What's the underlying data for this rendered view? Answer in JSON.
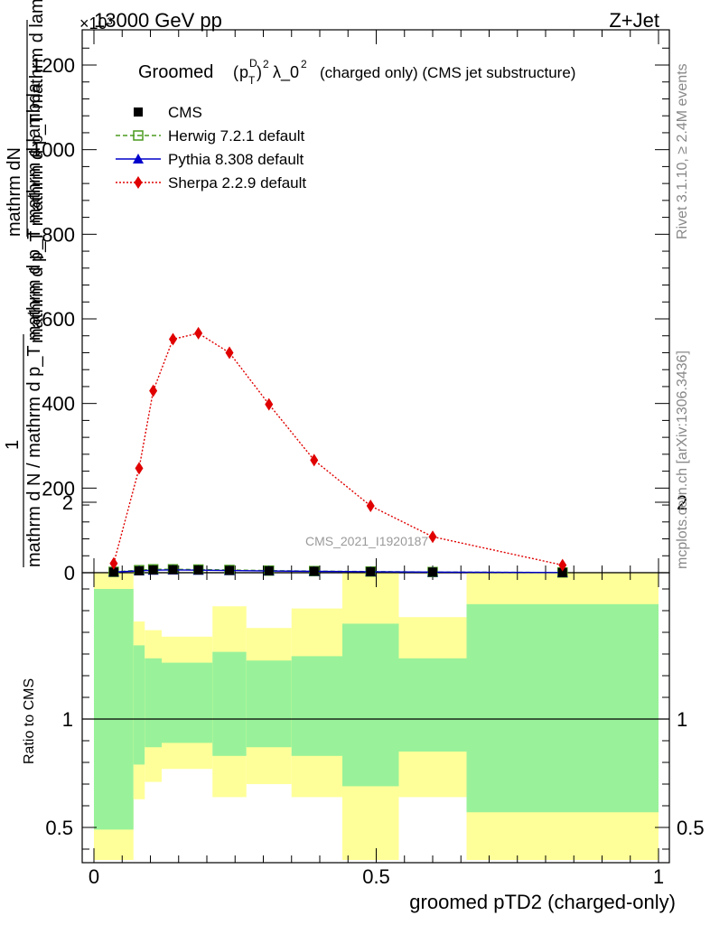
{
  "header": {
    "left": "13000 GeV pp",
    "right": "Z+Jet",
    "exponent": "×10³"
  },
  "side_labels": {
    "rivet": "Rivet 3.1.10, ≥ 2.4M events",
    "mcplots": "mcplots.cern.ch [arXiv:1306.3436]"
  },
  "main_title": "Groomed (p_T^D)² λ_0²  (charged only) (CMS jet substructure)",
  "main_title_parts": {
    "prefix": "Groomed",
    "pt": "p",
    "pt_sub": "T",
    "pt_sup": "D",
    "sq": "2",
    "lambda": "λ_0",
    "rest": "(charged only) (CMS jet substructure)"
  },
  "watermark": "CMS_2021_I1920187",
  "ylabel_parts": {
    "numerator_top": "mathrm dN",
    "denominator_top": "mathrm d p_T mathrm d p_T mathrm d lambda",
    "denominator_sub": "T",
    "one": "1",
    "lower_denominator": "mathrm d N / mathrm d p_T mathrm d p_T mathrm d lambda"
  },
  "xlabel": "groomed pTD2 (charged-only)",
  "ratio_ylabel": "Ratio to CMS",
  "legend": [
    {
      "name": "CMS",
      "color": "#000000",
      "marker": "square-filled",
      "line": "none"
    },
    {
      "name": "Herwig 7.2.1 default",
      "color": "#4a9a1e",
      "marker": "square-open",
      "line": "dashed"
    },
    {
      "name": "Pythia 8.308 default",
      "color": "#0000cc",
      "marker": "triangle",
      "line": "solid"
    },
    {
      "name": "Sherpa 2.2.9 default",
      "color": "#e00000",
      "marker": "diamond",
      "line": "dotted"
    }
  ],
  "chart_data": {
    "type": "line",
    "x_range": [
      0,
      1
    ],
    "main_y_range": [
      0,
      1280
    ],
    "main_y_ticks": [
      0,
      200,
      400,
      600,
      800,
      1000,
      1200
    ],
    "main_y_tick_labels": [
      "0",
      "200",
      "400",
      "600",
      "800",
      "1000",
      "1200"
    ],
    "ratio_y_range": [
      0.35,
      2.25
    ],
    "ratio_y_ticks": [
      0.5,
      1,
      2
    ],
    "ratio_y_tick_labels": [
      "0.5",
      "1",
      "2"
    ],
    "x_ticks": [
      0,
      0.5,
      1
    ],
    "x_tick_labels": [
      "0",
      "0.5",
      "1"
    ],
    "series": [
      {
        "name": "Sherpa 2.2.9 default",
        "x": [
          0.035,
          0.08,
          0.105,
          0.14,
          0.185,
          0.24,
          0.31,
          0.39,
          0.49,
          0.6,
          0.83
        ],
        "y": [
          22,
          247,
          430,
          552,
          566,
          520,
          398,
          266,
          158,
          85,
          18
        ]
      },
      {
        "name": "CMS",
        "x": [
          0.035,
          0.08,
          0.105,
          0.14,
          0.185,
          0.24,
          0.31,
          0.39,
          0.49,
          0.6,
          0.83
        ],
        "y": [
          1.5,
          4.5,
          6.5,
          7,
          6.5,
          5.5,
          4.5,
          3.5,
          2.5,
          1.5,
          0.4
        ]
      },
      {
        "name": "Herwig 7.2.1 default",
        "x": [
          0.035,
          0.08,
          0.105,
          0.14,
          0.185,
          0.24,
          0.31,
          0.39,
          0.49,
          0.6,
          0.83
        ],
        "y": [
          2,
          6,
          8,
          8,
          7.5,
          6.5,
          5,
          3.8,
          2.7,
          1.6,
          0.5
        ]
      },
      {
        "name": "Pythia 8.308 default",
        "x": [
          0.035,
          0.08,
          0.105,
          0.14,
          0.185,
          0.24,
          0.31,
          0.39,
          0.49,
          0.6,
          0.83
        ],
        "y": [
          1.5,
          4.5,
          6,
          6.5,
          6,
          5.2,
          4.2,
          3.2,
          2.3,
          1.4,
          0.4
        ]
      }
    ],
    "ratio_bands": {
      "bins": [
        {
          "x0": 0.0,
          "x1": 0.07,
          "inner": [
            0.49,
            1.6
          ],
          "outer": [
            0.35,
            2.01
          ]
        },
        {
          "x0": 0.07,
          "x1": 0.09,
          "inner": [
            0.79,
            1.34
          ],
          "outer": [
            0.63,
            1.45
          ]
        },
        {
          "x0": 0.09,
          "x1": 0.12,
          "inner": [
            0.87,
            1.28
          ],
          "outer": [
            0.71,
            1.41
          ]
        },
        {
          "x0": 0.12,
          "x1": 0.16,
          "inner": [
            0.89,
            1.26
          ],
          "outer": [
            0.77,
            1.38
          ]
        },
        {
          "x0": 0.16,
          "x1": 0.21,
          "inner": [
            0.89,
            1.26
          ],
          "outer": [
            0.77,
            1.38
          ]
        },
        {
          "x0": 0.21,
          "x1": 0.27,
          "inner": [
            0.83,
            1.31
          ],
          "outer": [
            0.64,
            1.52
          ]
        },
        {
          "x0": 0.27,
          "x1": 0.35,
          "inner": [
            0.87,
            1.27
          ],
          "outer": [
            0.7,
            1.42
          ]
        },
        {
          "x0": 0.35,
          "x1": 0.44,
          "inner": [
            0.83,
            1.29
          ],
          "outer": [
            0.64,
            1.51
          ]
        },
        {
          "x0": 0.44,
          "x1": 0.54,
          "inner": [
            0.69,
            1.44
          ],
          "outer": [
            0.35,
            1.74
          ]
        },
        {
          "x0": 0.54,
          "x1": 0.66,
          "inner": [
            0.85,
            1.28
          ],
          "outer": [
            0.64,
            1.47
          ]
        },
        {
          "x0": 0.66,
          "x1": 1.0,
          "inner": [
            0.57,
            1.53
          ],
          "outer": [
            0.35,
            1.92
          ]
        }
      ]
    }
  },
  "colors": {
    "inner_band": "#99f299",
    "outer_band": "#ffff99",
    "axis": "#000000"
  }
}
